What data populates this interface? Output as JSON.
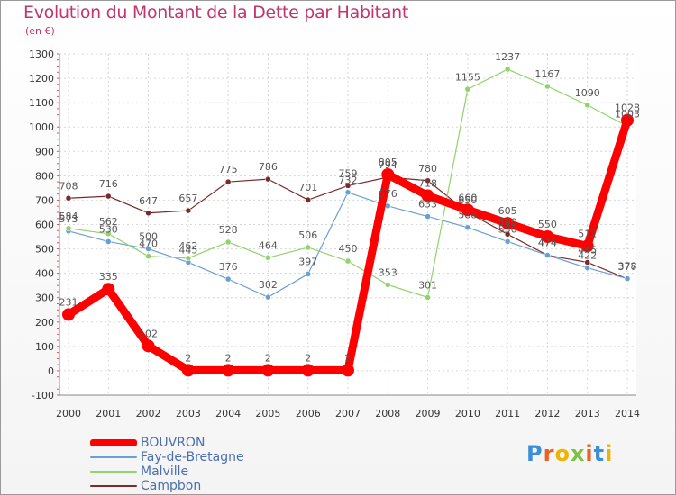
{
  "title": "Evolution du Montant de la Dette par Habitant",
  "subtitle": "(en €)",
  "logo": "Proxiti",
  "chart_data": {
    "type": "line",
    "x": [
      "2000",
      "2001",
      "2002",
      "2003",
      "2004",
      "2005",
      "2006",
      "2007",
      "2008",
      "2009",
      "2010",
      "2011",
      "2012",
      "2013",
      "2014"
    ],
    "ylim": [
      -100,
      1300
    ],
    "yticks": [
      -100,
      0,
      100,
      200,
      300,
      400,
      500,
      600,
      700,
      800,
      900,
      1000,
      1100,
      1200,
      1300
    ],
    "grid": true,
    "legend_position": "bottom-left",
    "series": [
      {
        "name": "BOUVRON",
        "color": "#ff0000",
        "values": [
          231,
          335,
          102,
          2,
          2,
          2,
          2,
          2,
          805,
          718,
          660,
          605,
          550,
          512,
          1028
        ]
      },
      {
        "name": "Fay-de-Bretagne",
        "color": "#6a9fd4",
        "values": [
          573,
          530,
          500,
          445,
          376,
          302,
          397,
          732,
          676,
          633,
          588,
          530,
          474,
          422,
          378
        ]
      },
      {
        "name": "Malville",
        "color": "#8fd36a",
        "values": [
          584,
          562,
          470,
          462,
          528,
          464,
          506,
          450,
          353,
          301,
          1155,
          1237,
          1167,
          1090,
          1003
        ]
      },
      {
        "name": "Campbon",
        "color": "#7a2a2a",
        "values": [
          708,
          716,
          647,
          657,
          775,
          786,
          701,
          759,
          794,
          780,
          650,
          560,
          474,
          445,
          377
        ]
      }
    ]
  }
}
